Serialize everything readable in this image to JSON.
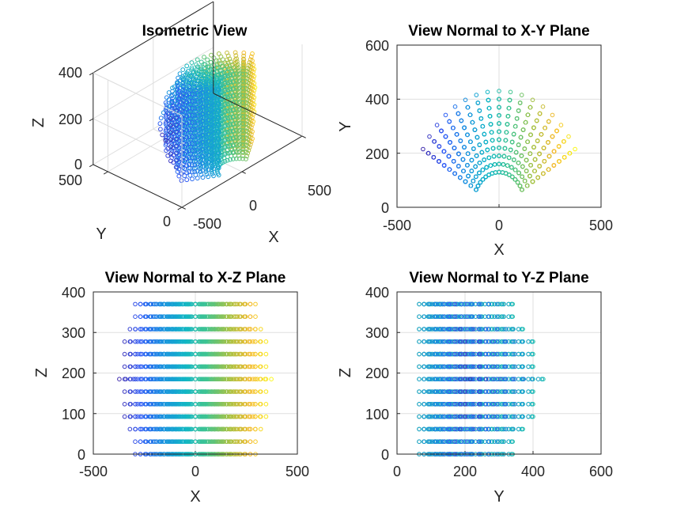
{
  "chart_data": [
    {
      "type": "scatter",
      "projection": "isometric-3d",
      "title": "Isometric View",
      "xlabel": "X",
      "ylabel": "Y",
      "zlabel": "Z",
      "xlim": [
        -500,
        500
      ],
      "ylim": [
        0,
        600
      ],
      "zlim": [
        0,
        400
      ],
      "xticks": [
        "-500",
        "0",
        "500"
      ],
      "yticks": [
        "0",
        "500"
      ],
      "zticks": [
        "0",
        "200",
        "400"
      ],
      "grid": true,
      "colormap": "parula",
      "color_by": "x",
      "marker": "open-circle",
      "arc": {
        "radius_min": 130,
        "radius_max": 430,
        "angle_min_deg": 30,
        "angle_max_deg": 150
      },
      "z_range": [
        0,
        370
      ]
    },
    {
      "type": "scatter",
      "title": "View Normal to X-Y Plane",
      "xlabel": "X",
      "ylabel": "Y",
      "xlim": [
        -500,
        500
      ],
      "ylim": [
        0,
        600
      ],
      "xticks": [
        "-500",
        "0",
        "500"
      ],
      "yticks": [
        "0",
        "200",
        "400",
        "600"
      ],
      "grid": true
    },
    {
      "type": "scatter",
      "title": "View Normal to X-Z Plane",
      "xlabel": "X",
      "ylabel": "Z",
      "xlim": [
        -500,
        500
      ],
      "ylim": [
        0,
        400
      ],
      "xticks": [
        "-500",
        "0",
        "500"
      ],
      "yticks": [
        "0",
        "100",
        "200",
        "300",
        "400"
      ],
      "grid": true
    },
    {
      "type": "scatter",
      "title": "View Normal to Y-Z Plane",
      "xlabel": "Y",
      "ylabel": "Z",
      "xlim": [
        0,
        600
      ],
      "ylim": [
        0,
        400
      ],
      "xticks": [
        "0",
        "200",
        "400",
        "600"
      ],
      "yticks": [
        "0",
        "100",
        "200",
        "300",
        "400"
      ],
      "grid": true
    }
  ],
  "colors": {
    "parula": [
      "#3e26a8",
      "#2f5af6",
      "#1a91e0",
      "#11b6c5",
      "#40c490",
      "#a4c245",
      "#f4bb2f",
      "#f9fb15"
    ],
    "axis": "#262626",
    "grid": "#dfdfdf"
  }
}
